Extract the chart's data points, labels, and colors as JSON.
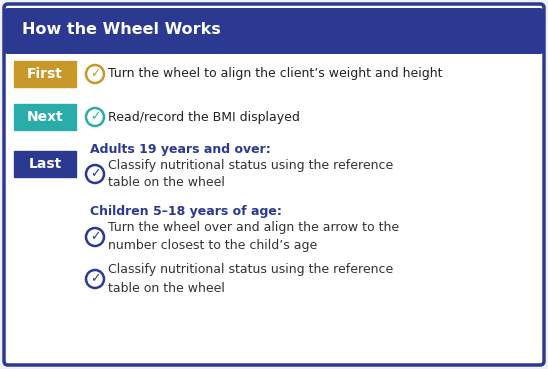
{
  "title": "How the Wheel Works",
  "title_bg": "#2b3990",
  "title_color": "#ffffff",
  "border_color": "#2b3990",
  "bg_color": "#ffffff",
  "fig_bg": "#f0f2f8",
  "rows": [
    {
      "label": "First",
      "label_bg": "#c8992a",
      "label_color": "#ffffff",
      "icon_color": "#c8992a",
      "text": "Turn the wheel to align the client’s weight and height"
    },
    {
      "label": "Next",
      "label_bg": "#2aada8",
      "label_color": "#ffffff",
      "icon_color": "#2aada8",
      "text": "Read/record the BMI displayed"
    },
    {
      "label": "Last",
      "label_bg": "#2b3990",
      "label_color": "#ffffff",
      "icon_color": "#2b3990",
      "adults_header": "Adults 19 years and over:",
      "adults_header_color": "#2b3990",
      "adults_text": "Classify nutritional status using the reference\ntable on the wheel",
      "children_header": "Children 5–18 years of age:",
      "children_header_color": "#2b3990",
      "children_text1": "Turn the wheel over and align the arrow to the\nnumber closest to the child’s age",
      "children_text2": "Classify nutritional status using the reference\ntable on the wheel",
      "text_color": "#333333"
    }
  ]
}
